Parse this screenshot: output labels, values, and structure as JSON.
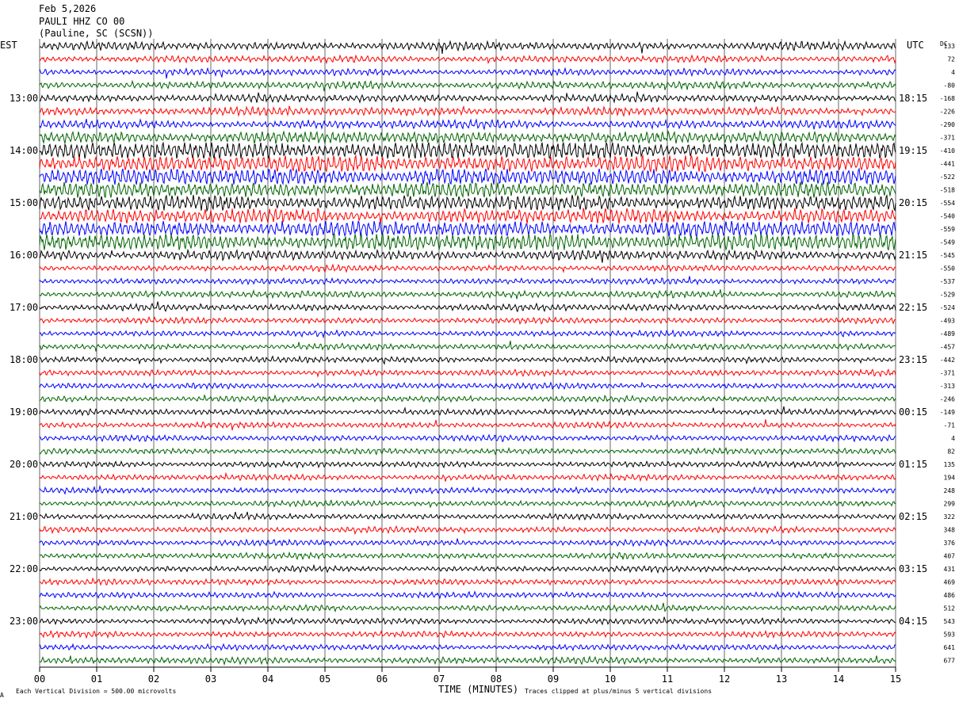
{
  "header": {
    "date": "Feb 5,2026",
    "station": "PAULI HHZ CO 00",
    "location": "(Pauline, SC (SCSN))",
    "left_tz": "EST",
    "right_tz": "UTC",
    "dc_label": "DC"
  },
  "footer": {
    "scale_note": "Each Vertical Division =  500.00 microvolts",
    "xlabel": "TIME (MINUTES)",
    "clip_note": "Traces clipped at plus/minus 5 vertical divisions",
    "corner_mark": "A"
  },
  "colors": {
    "trace_cycle": [
      "#000000",
      "#ff0000",
      "#0000ff",
      "#006400"
    ],
    "grid": "#000000",
    "background": "#ffffff"
  },
  "chart_data": {
    "type": "line",
    "title": "PAULI HHZ CO 00",
    "xlabel": "TIME (MINUTES)",
    "xlim": [
      0,
      15
    ],
    "x_ticks": [
      "00",
      "01",
      "02",
      "03",
      "04",
      "05",
      "06",
      "07",
      "08",
      "09",
      "10",
      "11",
      "12",
      "13",
      "14",
      "15"
    ],
    "rows": 48,
    "row_minutes": 15,
    "hour_labels_local": [
      "13:00",
      "14:00",
      "15:00",
      "16:00",
      "17:00",
      "18:00",
      "19:00",
      "20:00",
      "21:00",
      "22:00",
      "23:00"
    ],
    "hour_labels_utc": [
      "18:15",
      "19:15",
      "20:15",
      "21:15",
      "22:15",
      "23:15",
      "00:15",
      "01:15",
      "02:15",
      "03:15",
      "04:15"
    ],
    "first_labeled_row": 4,
    "dc_offsets": [
      "133",
      "72",
      "4",
      "-80",
      "-168",
      "-226",
      "-290",
      "-371",
      "-410",
      "-441",
      "-522",
      "-518",
      "-554",
      "-540",
      "-559",
      "-549",
      "-545",
      "-550",
      "-537",
      "-529",
      "-524",
      "-493",
      "-489",
      "-457",
      "-442",
      "-371",
      "-313",
      "-246",
      "-149",
      "-71",
      "4",
      "82",
      "135",
      "194",
      "248",
      "299",
      "322",
      "348",
      "376",
      "407",
      "431",
      "469",
      "486",
      "512",
      "543",
      "593",
      "641",
      "677"
    ],
    "row_amplitude": [
      1.0,
      0.8,
      0.8,
      0.9,
      0.9,
      1.0,
      1.0,
      1.4,
      2.1,
      2.0,
      2.0,
      1.8,
      1.8,
      1.7,
      1.9,
      2.0,
      1.2,
      0.7,
      0.7,
      0.8,
      0.8,
      0.7,
      0.7,
      0.7,
      0.7,
      0.7,
      0.7,
      0.7,
      0.7,
      0.7,
      0.7,
      0.7,
      0.7,
      0.7,
      0.7,
      0.7,
      0.7,
      0.7,
      0.7,
      0.7,
      0.7,
      0.7,
      0.7,
      0.7,
      0.7,
      0.7,
      0.7,
      0.8
    ]
  }
}
